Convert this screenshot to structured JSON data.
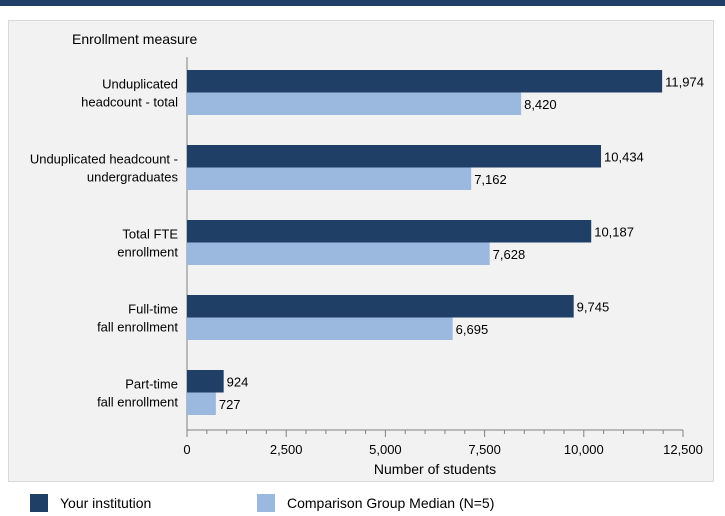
{
  "chart_data": {
    "type": "bar",
    "orientation": "horizontal",
    "category_axis_title": "Enrollment measure",
    "xlabel": "Number of students",
    "categories": [
      [
        "Unduplicated",
        "headcount - total"
      ],
      [
        "Unduplicated headcount -",
        "undergraduates"
      ],
      [
        "Total FTE",
        "enrollment"
      ],
      [
        "Full-time",
        "fall enrollment"
      ],
      [
        "Part-time",
        "fall enrollment"
      ]
    ],
    "series": [
      {
        "name": "Your institution",
        "color": "#1f3f67",
        "values": [
          11974,
          10434,
          10187,
          9745,
          924
        ],
        "labels": [
          "11,974",
          "10,434",
          "10,187",
          "9,745",
          "924"
        ]
      },
      {
        "name": "Comparison Group Median (N=5)",
        "color": "#9bb8de",
        "values": [
          8420,
          7162,
          7628,
          6695,
          727
        ],
        "labels": [
          "8,420",
          "7,162",
          "7,628",
          "6,695",
          "727"
        ]
      }
    ],
    "xlim": [
      0,
      12500
    ],
    "xticks": [
      0,
      2500,
      5000,
      7500,
      10000,
      12500
    ],
    "xtick_labels": [
      "0",
      "2,500",
      "5,000",
      "7,500",
      "10,000",
      "12,500"
    ],
    "grid": false,
    "legend_position": "bottom"
  }
}
